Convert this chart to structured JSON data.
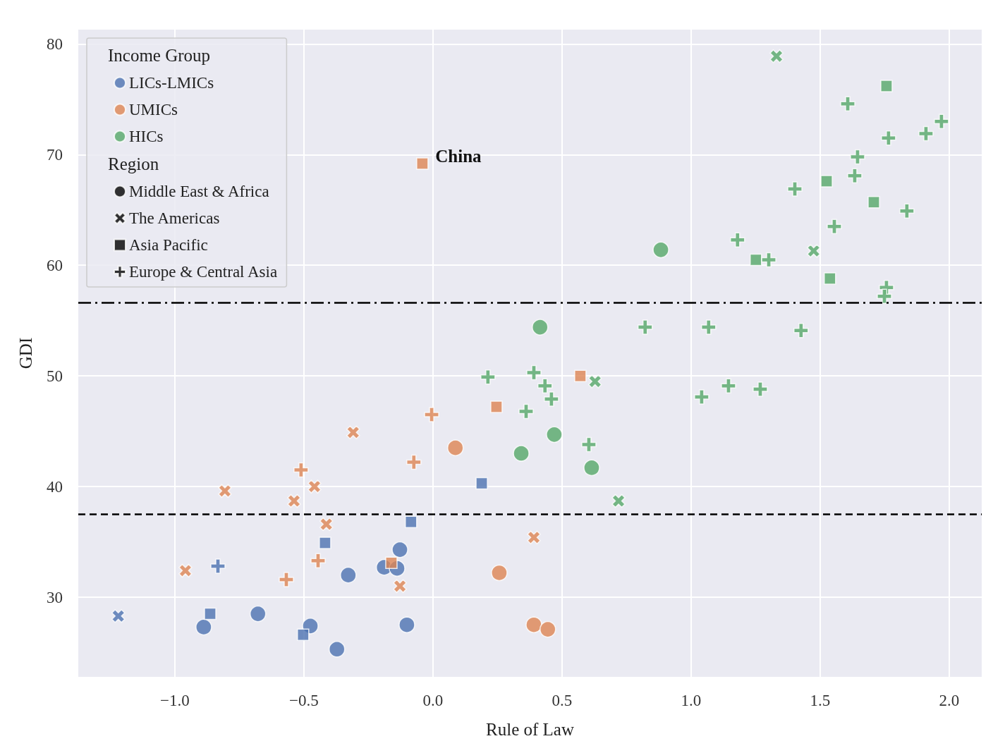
{
  "chart_data": {
    "type": "scatter",
    "xlabel": "Rule of Law",
    "ylabel": "GDI",
    "legend_title": [
      "Income Group",
      "Region"
    ],
    "legend": "top left",
    "grid": true,
    "xlim": [
      -1.374,
      2.126
    ],
    "xticks": [
      {
        "value": -1,
        "label": "−1.0"
      },
      {
        "value": -0.5,
        "label": "−0.5"
      },
      {
        "value": 0,
        "label": "0.0"
      },
      {
        "value": 0.5,
        "label": "0.5"
      },
      {
        "value": 1,
        "label": "1.0"
      },
      {
        "value": 1.5,
        "label": "1.5"
      },
      {
        "value": 2,
        "label": "2.0"
      }
    ],
    "ylim": [
      22.8,
      81.3
    ],
    "yticks": [
      30,
      40,
      50,
      60,
      70,
      80
    ],
    "ref_lines": [
      {
        "axis": "y",
        "value": 56.6,
        "line_style": "dashdot",
        "color": "#000000"
      },
      {
        "axis": "y",
        "value": 37.5,
        "line_style": "dashed",
        "color": "#000000"
      }
    ],
    "annotations": [
      {
        "text": "China",
        "x": -0.04,
        "y": 69.2
      }
    ],
    "series": [
      {
        "name": "LICs-LMICs",
        "color": "#4c72b0",
        "marker": "circle"
      },
      {
        "name": "UMICs",
        "color": "#dd8452",
        "marker": "circle"
      },
      {
        "name": "HICs",
        "color": "#55a868",
        "marker": "circle"
      },
      {
        "name": "Middle East & Africa",
        "color": "#000000",
        "marker": "circle"
      },
      {
        "name": "The Americas",
        "color": "#000000",
        "marker": "cross"
      },
      {
        "name": "Asia Pacific",
        "color": "#000000",
        "marker": "square"
      },
      {
        "name": "Europe & Central Asia",
        "color": "#000000",
        "marker": "plus"
      },
      {
        "color": "#4c72b0",
        "marker": "circle",
        "x": [
          -0.888,
          -0.678,
          -0.475,
          -0.372,
          -0.328,
          -0.189,
          -0.128,
          -0.139,
          -0.101
        ],
        "values": [
          27.3,
          28.5,
          27.4,
          25.3,
          32.0,
          32.7,
          34.3,
          32.6,
          27.5
        ]
      },
      {
        "color": "#4c72b0",
        "marker": "cross",
        "x": [
          -1.219
        ],
        "values": [
          28.3
        ]
      },
      {
        "color": "#4c72b0",
        "marker": "square",
        "x": [
          -0.863,
          -0.503,
          -0.418,
          -0.085,
          0.189
        ],
        "values": [
          28.5,
          26.6,
          34.9,
          36.8,
          40.3
        ]
      },
      {
        "color": "#4c72b0",
        "marker": "plus",
        "x": [
          -0.833
        ],
        "values": [
          32.8
        ]
      },
      {
        "color": "#dd8452",
        "marker": "circle",
        "x": [
          0.087,
          0.257,
          0.391,
          0.445
        ],
        "values": [
          43.5,
          32.2,
          27.5,
          27.1
        ]
      },
      {
        "color": "#dd8452",
        "marker": "cross",
        "x": [
          -0.959,
          -0.806,
          -0.538,
          -0.459,
          -0.413,
          -0.309,
          -0.128,
          0.391
        ],
        "values": [
          32.4,
          39.6,
          38.7,
          40.0,
          36.6,
          44.9,
          31.0,
          35.4
        ]
      },
      {
        "color": "#dd8452",
        "marker": "square",
        "x": [
          -0.041,
          0.246,
          0.571,
          -0.161
        ],
        "values": [
          69.2,
          47.2,
          50.0,
          33.1
        ]
      },
      {
        "color": "#dd8452",
        "marker": "plus",
        "x": [
          -0.511,
          -0.568,
          -0.445,
          -0.005,
          -0.074
        ],
        "values": [
          41.5,
          31.6,
          33.3,
          46.5,
          42.2
        ]
      },
      {
        "color": "#55a868",
        "marker": "circle",
        "x": [
          0.883,
          0.415,
          0.47,
          0.342,
          0.615
        ],
        "values": [
          61.4,
          54.4,
          44.7,
          43.0,
          41.7
        ]
      },
      {
        "color": "#55a868",
        "marker": "cross",
        "x": [
          1.331,
          1.475,
          0.628,
          0.719
        ],
        "values": [
          78.9,
          61.3,
          49.5,
          38.7
        ]
      },
      {
        "color": "#55a868",
        "marker": "square",
        "x": [
          1.757,
          1.525,
          1.708,
          1.251,
          1.538
        ],
        "values": [
          76.2,
          67.6,
          65.7,
          60.5,
          58.8
        ]
      },
      {
        "color": "#55a868",
        "marker": "plus",
        "x": [
          1.607,
          1.765,
          1.91,
          1.97,
          1.645,
          1.634,
          1.402,
          1.836,
          1.555,
          1.18,
          1.301,
          1.757,
          1.749,
          0.822,
          1.068,
          1.426,
          0.213,
          0.391,
          0.434,
          0.459,
          0.361,
          0.604,
          1.041,
          1.145,
          1.268
        ],
        "values": [
          74.6,
          71.5,
          71.9,
          73.0,
          69.8,
          68.1,
          66.9,
          64.9,
          63.5,
          62.3,
          60.5,
          58.0,
          57.2,
          54.4,
          54.4,
          54.1,
          49.9,
          50.3,
          49.1,
          47.9,
          46.8,
          43.8,
          48.1,
          49.1,
          48.8
        ]
      }
    ]
  }
}
